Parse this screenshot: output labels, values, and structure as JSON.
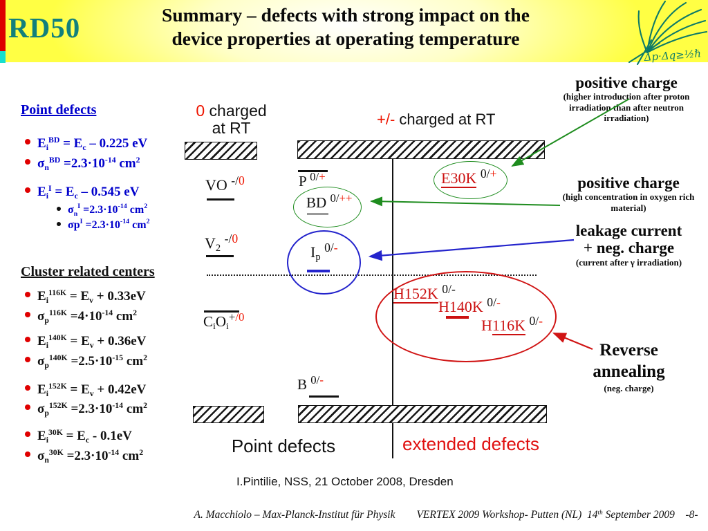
{
  "header": {
    "logo_text": "RD50",
    "title_line1": "Summary – defects with strong impact on the",
    "title_line2": "device properties at operating temperature",
    "mpi_formula": "Δp·Δq≥½ℏ"
  },
  "left_panel": {
    "point_title": "Point defects",
    "point_items": [
      "E<sub>i</sub><sup>BD</sup> = E<sub>c</sub> – 0.225 eV",
      "σ<sub>n</sub><sup>BD</sup> =2.3·10<sup>-14</sup> cm<sup>2</sup>",
      "E<sub>i</sub><sup>I</sup> = E<sub>c</sub> – 0.545 eV"
    ],
    "point_subitems": [
      "σ<sub>n</sub><sup>I</sup> =2.3·10<sup>-14</sup> cm<sup>2</sup>",
      "σp<sup>I</sup> =2.3·10<sup>-14</sup> cm<sup>2</sup>"
    ],
    "cluster_title": "Cluster related centers",
    "cluster_items": [
      "E<sub>i</sub><sup>116K</sup> = E<sub>v</sub> + 0.33eV",
      "σ<sub>p</sub><sup>116K</sup> =4·10<sup>-14</sup> cm<sup>2</sup>",
      "E<sub>i</sub><sup>140K</sup> = E<sub>v</sub> + 0.36eV",
      "σ<sub>p</sub><sup>140K</sup> =2.5·10<sup>-15</sup> cm<sup>2</sup>",
      "E<sub>i</sub><sup>152K</sup> = E<sub>v</sub> + 0.42eV",
      "σ<sub>p</sub><sup>152K</sup> =2.3·10<sup>-14</sup> cm<sup>2</sup>",
      "E<sub>i</sub><sup>30K</sup> = E<sub>c</sub> - 0.1eV",
      "σ<sub>n</sub><sup>30K</sup> =2.3·10<sup>-14</sup> cm<sup>2</sup>"
    ]
  },
  "diagram": {
    "zero_charged_line1": "<span class='r'>0</span> charged",
    "zero_charged_line2": "at RT",
    "pm_charged": "<span class='r'>+/-</span> charged at RT",
    "vo": "VO <sup>-/<span class='r'>0</span></sup>",
    "v2": "V<sub>2</sub> <sup>-/<span class='r'>0</span></sup>",
    "p": "P <sup>0/<span class='r'>+</span></sup>",
    "bd": "BD <sup>0/<span class='r'>++</span></sup>",
    "ip": "I<sub>p</sub> <sup>0/<span class='r'>-</span></sup>",
    "e30k": "<span class='ru'>E30K</span> <sup>0/<span class='r'>+</span></sup>",
    "h152k": "<span class='ru'>H152K</span> <sup>0/-</sup>",
    "h140k": "<span class='rr'>H140K</span> <sup>0/<span class='r'>-</span></sup>",
    "h116k": "<span class='rr'>H</span><span class='ru'>116K</span> <sup>0/<span class='r'>-</span></sup>",
    "cioi": "C<sub>i</sub>O<sub>i</sub><sup>+<span class='r'>/0</span></sup>",
    "b": "B <sup>0/<span class='r'>-</span></sup>",
    "point_defects_label": "Point defects",
    "extended_defects_label": "extended defects",
    "credit": "I.Pintilie, NSS, 21 October 2008, Dresden"
  },
  "annotations": {
    "pos1_title": "positive charge",
    "pos1_sub": "(higher introduction after proton irradiation than after neutron irradiation)",
    "pos2_title": "positive charge",
    "pos2_sub": "(high concentration in oxygen rich material)",
    "leak_title1": "leakage current",
    "leak_title2": "+ neg. charge",
    "leak_sub": "(current after  γ irradiation)",
    "rev_title": "Reverse annealing",
    "rev_sub": "(neg. charge)"
  },
  "footer": {
    "text": "A. Macchiolo – Max-Planck-Institut für Physik&emsp;&emsp;VERTEX 2009 Workshop- Putten (NL)&ensp;14<sup>th</sup> September 2009&emsp;-8-"
  },
  "colors": {
    "header_yellow": "#ffff44",
    "teal": "#12807c",
    "accent_red": "#ee1500",
    "blue_text": "#0000cc",
    "green_line": "#1e8c1e",
    "blue_line": "#2424cc",
    "red_line": "#d01414",
    "edge_red": "#dd0000",
    "edge_cyan": "#17dfcf"
  }
}
